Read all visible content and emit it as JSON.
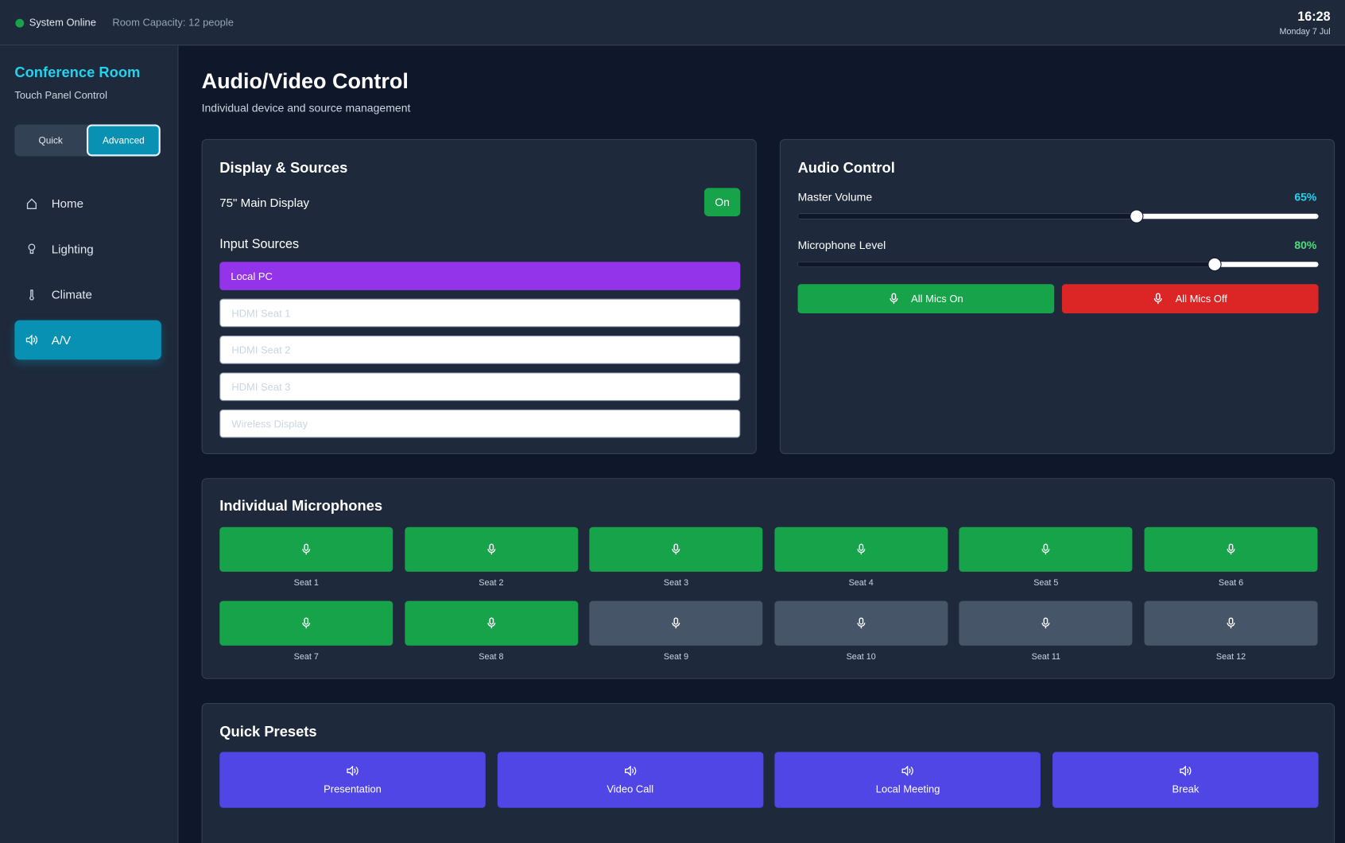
{
  "status": {
    "system": "System Online",
    "capacity": "Room Capacity: 12 people",
    "time": "16:28",
    "date": "Monday 7 Jul"
  },
  "sidebar": {
    "title": "Conference Room",
    "subtitle": "Touch Panel Control",
    "modes": [
      "Quick",
      "Advanced"
    ],
    "active_mode": 1,
    "nav": [
      "Home",
      "Lighting",
      "Climate",
      "A/V"
    ],
    "active_nav": 3
  },
  "header": {
    "title": "Audio/Video Control",
    "subtitle": "Individual device and source management"
  },
  "display": {
    "title": "Display & Sources",
    "device": "75\" Main Display",
    "power": "On",
    "sources_title": "Input Sources",
    "sources": [
      "Local PC",
      "HDMI Seat 1",
      "HDMI Seat 2",
      "HDMI Seat 3",
      "Wireless Display"
    ],
    "active_source": 0
  },
  "audio": {
    "title": "Audio Control",
    "sliders": [
      {
        "label": "Master Volume",
        "value": 65,
        "value_label": "65%",
        "color": "#22d3ee"
      },
      {
        "label": "Microphone Level",
        "value": 80,
        "value_label": "80%",
        "color": "#4ade80"
      }
    ],
    "buttons": [
      {
        "label": "All Mics On",
        "color": "#16a34a"
      },
      {
        "label": "All Mics Off",
        "color": "#dc2626"
      }
    ]
  },
  "mics": {
    "title": "Individual Microphones",
    "seats": [
      {
        "label": "Seat 1",
        "on": true
      },
      {
        "label": "Seat 2",
        "on": true
      },
      {
        "label": "Seat 3",
        "on": true
      },
      {
        "label": "Seat 4",
        "on": true
      },
      {
        "label": "Seat 5",
        "on": true
      },
      {
        "label": "Seat 6",
        "on": true
      },
      {
        "label": "Seat 7",
        "on": true
      },
      {
        "label": "Seat 8",
        "on": true
      },
      {
        "label": "Seat 9",
        "on": false
      },
      {
        "label": "Seat 10",
        "on": false
      },
      {
        "label": "Seat 11",
        "on": false
      },
      {
        "label": "Seat 12",
        "on": false
      }
    ]
  },
  "presets": {
    "title": "Quick Presets",
    "items": [
      "Presentation",
      "Video Call",
      "Local Meeting",
      "Break"
    ]
  }
}
